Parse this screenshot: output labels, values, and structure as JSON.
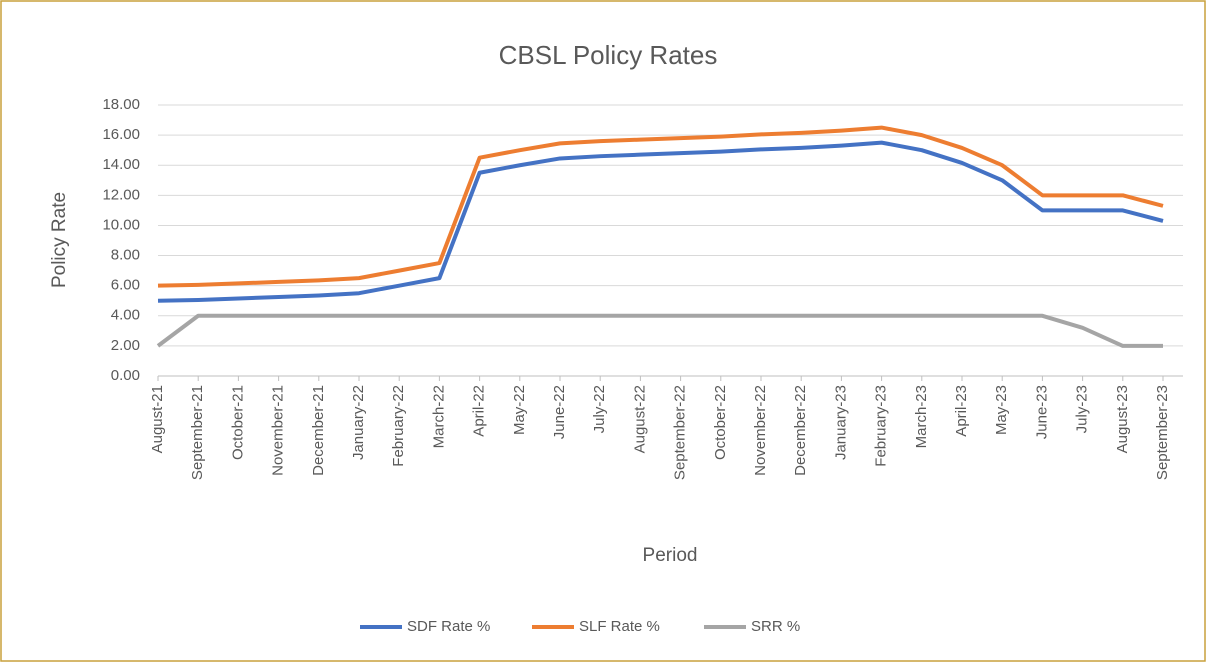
{
  "chart_data": {
    "type": "line",
    "title": "CBSL Policy Rates",
    "x_label": "Period",
    "y_label": "Policy Rate",
    "categories": [
      "August-21",
      "September-21",
      "October-21",
      "November-21",
      "December-21",
      "January-22",
      "February-22",
      "March-22",
      "April-22",
      "May-22",
      "June-22",
      "July-22",
      "August-22",
      "September-22",
      "October-22",
      "November-22",
      "December-22",
      "January-23",
      "February-23",
      "March-23",
      "April-23",
      "May-23",
      "June-23",
      "July-23",
      "August-23",
      "September-23"
    ],
    "series": [
      {
        "name": "SDF Rate %",
        "color": "#4472c4",
        "values": [
          5.0,
          5.05,
          5.15,
          5.25,
          5.35,
          5.5,
          6.0,
          6.5,
          13.5,
          14.0,
          14.45,
          14.6,
          14.7,
          14.8,
          14.9,
          15.05,
          15.15,
          15.3,
          15.5,
          15.0,
          14.15,
          13.0,
          11.0,
          11.0,
          11.0,
          10.3
        ]
      },
      {
        "name": "SLF Rate %",
        "color": "#ed7d31",
        "values": [
          6.0,
          6.05,
          6.15,
          6.25,
          6.35,
          6.5,
          7.0,
          7.5,
          14.5,
          15.0,
          15.45,
          15.6,
          15.7,
          15.8,
          15.9,
          16.05,
          16.15,
          16.3,
          16.5,
          16.0,
          15.15,
          14.0,
          12.0,
          12.0,
          12.0,
          11.3
        ]
      },
      {
        "name": "SRR %",
        "color": "#a5a5a5",
        "values": [
          2.0,
          4.0,
          4.0,
          4.0,
          4.0,
          4.0,
          4.0,
          4.0,
          4.0,
          4.0,
          4.0,
          4.0,
          4.0,
          4.0,
          4.0,
          4.0,
          4.0,
          4.0,
          4.0,
          4.0,
          4.0,
          4.0,
          4.0,
          3.2,
          2.0,
          2.0
        ]
      }
    ],
    "ylim": [
      0,
      18
    ],
    "yticks": [
      {
        "value": 0,
        "label": "0.00"
      },
      {
        "value": 2,
        "label": "2.00"
      },
      {
        "value": 4,
        "label": "4.00"
      },
      {
        "value": 6,
        "label": "6.00"
      },
      {
        "value": 8,
        "label": "8.00"
      },
      {
        "value": 10,
        "label": "10.00"
      },
      {
        "value": 12,
        "label": "12.00"
      },
      {
        "value": 14,
        "label": "14.00"
      },
      {
        "value": 16,
        "label": "16.00"
      },
      {
        "value": 18,
        "label": "18.00"
      }
    ],
    "grid": true,
    "legend": "bottom"
  }
}
